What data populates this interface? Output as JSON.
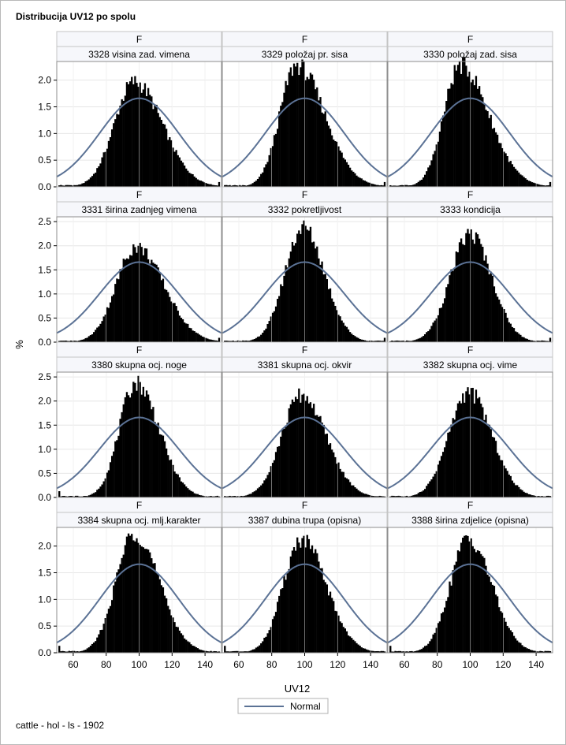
{
  "title": "Distribucija UV12 po spolu",
  "footnote": "cattle - hol - ls - 1902",
  "legend": {
    "label": "Normal",
    "position": "bottom-center"
  },
  "colors": {
    "bar": "#000000",
    "normal_curve": "#5b7295",
    "grid": "#e6e6e6",
    "header_bg": "#f6f7fb"
  },
  "chart_data": {
    "type": "histogram-panel",
    "grid": true,
    "layout": {
      "rows": 4,
      "columns": 3
    },
    "xlabel": "UV12",
    "ylabel": "%",
    "xlim": [
      50,
      150
    ],
    "xticks": [
      60,
      80,
      100,
      120,
      140
    ],
    "row_ylims": [
      [
        0,
        2.35
      ],
      [
        0,
        2.6
      ],
      [
        0,
        2.6
      ],
      [
        0,
        2.35
      ]
    ],
    "row_yticks": [
      [
        "0.0",
        "0.5",
        "1.0",
        "1.5",
        "2.0"
      ],
      [
        "0.0",
        "0.5",
        "1.0",
        "1.5",
        "2.0",
        "2.5"
      ],
      [
        "0.0",
        "0.5",
        "1.0",
        "1.5",
        "2.0",
        "2.5"
      ],
      [
        "0.0",
        "0.5",
        "1.0",
        "1.5",
        "2.0"
      ]
    ],
    "normal_curve": {
      "mean": 100,
      "sd": 24,
      "peak_percent": 1.66
    },
    "panels": [
      {
        "sex": "F",
        "trait": "3328 visina zad. vimena",
        "peak": 1.97,
        "mode": 97,
        "sd_left": 12,
        "sd_right": 17
      },
      {
        "sex": "F",
        "trait": "3329 položaj pr. sisa",
        "peak": 2.28,
        "mode": 95,
        "sd_left": 10,
        "sd_right": 17
      },
      {
        "sex": "F",
        "trait": "3330 položaj zad. sisa",
        "peak": 2.28,
        "mode": 94,
        "sd_left": 10,
        "sd_right": 17
      },
      {
        "sex": "F",
        "trait": "3331 širina zadnjeg vimena",
        "peak": 1.98,
        "mode": 98,
        "sd_left": 12,
        "sd_right": 17
      },
      {
        "sex": "F",
        "trait": "3332 pokretljivost",
        "peak": 2.38,
        "mode": 99,
        "sd_left": 11,
        "sd_right": 13
      },
      {
        "sex": "F",
        "trait": "3333 kondicija",
        "peak": 2.24,
        "mode": 100,
        "sd_left": 12,
        "sd_right": 13
      },
      {
        "sex": "F",
        "trait": "3380 skupna ocj. noge",
        "peak": 2.38,
        "mode": 98,
        "sd_left": 10,
        "sd_right": 14
      },
      {
        "sex": "F",
        "trait": "3381 skupna ocj. okvir",
        "peak": 2.12,
        "mode": 98,
        "sd_left": 12,
        "sd_right": 15
      },
      {
        "sex": "F",
        "trait": "3382 skupna ocj. vime",
        "peak": 2.18,
        "mode": 99,
        "sd_left": 12,
        "sd_right": 14
      },
      {
        "sex": "F",
        "trait": "3384 skupna ocj. mlj.karakter",
        "peak": 2.25,
        "mode": 97,
        "sd_left": 11,
        "sd_right": 15
      },
      {
        "sex": "F",
        "trait": "3387 dubina trupa (opisna)",
        "peak": 2.12,
        "mode": 98,
        "sd_left": 11,
        "sd_right": 15
      },
      {
        "sex": "F",
        "trait": "3388 širina zdjelice (opisna)",
        "peak": 2.15,
        "mode": 99,
        "sd_left": 11,
        "sd_right": 14
      }
    ]
  }
}
